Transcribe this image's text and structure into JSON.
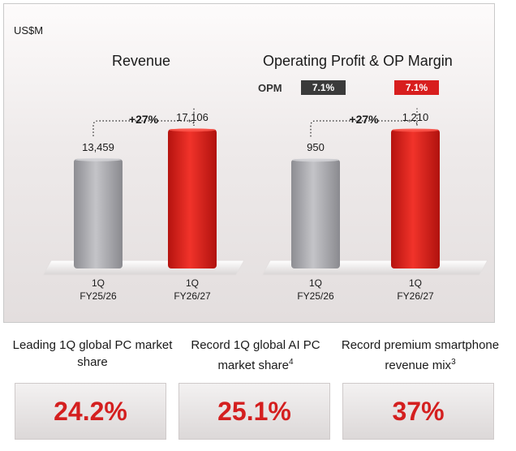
{
  "unit_label": "US$M",
  "charts": {
    "revenue": {
      "title": "Revenue"
    },
    "op": {
      "title": "Operating Profit & OP Margin",
      "opm_label": "OPM"
    }
  },
  "chart_data": [
    {
      "type": "bar",
      "title": "Revenue",
      "categories": [
        "1Q\nFY25/26",
        "1Q\nFY26/27"
      ],
      "values": [
        13459,
        17106
      ],
      "value_labels": [
        "13,459",
        "17,106"
      ],
      "colors": [
        "#a9a9ae",
        "#e0201a"
      ],
      "growth_label": "+27%"
    },
    {
      "type": "bar",
      "title": "Operating Profit & OP Margin",
      "categories": [
        "1Q\nFY25/26",
        "1Q\nFY26/27"
      ],
      "values": [
        950,
        1210
      ],
      "value_labels": [
        "950",
        "1,210"
      ],
      "colors": [
        "#a9a9ae",
        "#e0201a"
      ],
      "growth_label": "+27%",
      "opm": [
        "7.1%",
        "7.1%"
      ],
      "opm_colors": [
        "#3a3a3a",
        "#d81e1e"
      ]
    }
  ],
  "kpis": [
    {
      "title": "Leading 1Q global PC market share",
      "sup": "",
      "value": "24.2%"
    },
    {
      "title": "Record 1Q global AI PC market share",
      "sup": "4",
      "value": "25.1%"
    },
    {
      "title": "Record premium smartphone revenue mix",
      "sup": "3",
      "value": "37%"
    }
  ]
}
